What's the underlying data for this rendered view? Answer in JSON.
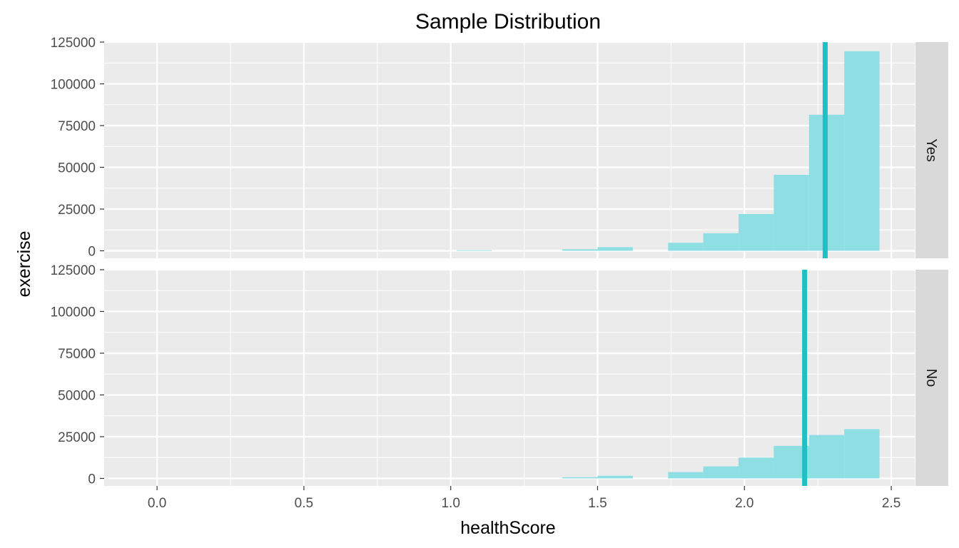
{
  "chart_data": {
    "type": "bar",
    "subtype": "faceted-histogram",
    "title": "Sample Distribution",
    "xlabel": "healthScore",
    "ylabel": "exercise",
    "xlim": [
      -0.18,
      2.58
    ],
    "ylim": [
      -4500,
      125000
    ],
    "x_ticks": [
      0.0,
      0.5,
      1.0,
      1.5,
      2.0,
      2.5
    ],
    "x_tick_labels": [
      "0.0",
      "0.5",
      "1.0",
      "1.5",
      "2.0",
      "2.5"
    ],
    "y_ticks": [
      0,
      25000,
      50000,
      75000,
      100000,
      125000
    ],
    "y_tick_labels": [
      "0",
      "25000",
      "50000",
      "75000",
      "100000",
      "125000"
    ],
    "bin_width": 0.12,
    "grid": true,
    "bar_color": "#8ddfe3",
    "mean_line_color": "#20bfc5",
    "facets": [
      {
        "label": "Yes",
        "bins": [
          {
            "x0": 1.02,
            "x1": 1.14,
            "count": 300
          },
          {
            "x0": 1.38,
            "x1": 1.5,
            "count": 900
          },
          {
            "x0": 1.5,
            "x1": 1.62,
            "count": 2200
          },
          {
            "x0": 1.74,
            "x1": 1.86,
            "count": 4800
          },
          {
            "x0": 1.86,
            "x1": 1.98,
            "count": 10500
          },
          {
            "x0": 1.98,
            "x1": 2.1,
            "count": 22000
          },
          {
            "x0": 2.1,
            "x1": 2.22,
            "count": 45500
          },
          {
            "x0": 2.22,
            "x1": 2.34,
            "count": 81500
          },
          {
            "x0": 2.34,
            "x1": 2.46,
            "count": 119500
          }
        ],
        "mean": 2.275
      },
      {
        "label": "No",
        "bins": [
          {
            "x0": 1.38,
            "x1": 1.5,
            "count": 700
          },
          {
            "x0": 1.5,
            "x1": 1.62,
            "count": 1600
          },
          {
            "x0": 1.74,
            "x1": 1.86,
            "count": 3800
          },
          {
            "x0": 1.86,
            "x1": 1.98,
            "count": 7200
          },
          {
            "x0": 1.98,
            "x1": 2.1,
            "count": 12500
          },
          {
            "x0": 2.1,
            "x1": 2.22,
            "count": 19500
          },
          {
            "x0": 2.22,
            "x1": 2.34,
            "count": 26000
          },
          {
            "x0": 2.34,
            "x1": 2.46,
            "count": 29500
          }
        ],
        "mean": 2.205
      }
    ]
  }
}
